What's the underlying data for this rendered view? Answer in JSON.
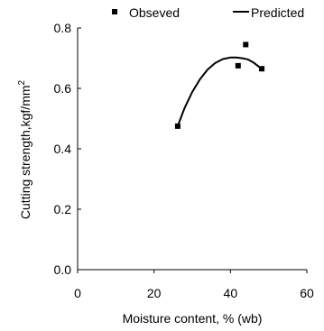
{
  "chart_data": {
    "type": "scatter",
    "title": "",
    "xlabel": "Moisture content, % (wb)",
    "ylabel": "Cutting strength,kgf/mm",
    "ylabel_superscript": "2",
    "xlim": [
      0,
      60
    ],
    "ylim": [
      0,
      0.8
    ],
    "xticks": [
      0,
      20,
      40,
      60
    ],
    "yticks": [
      0.0,
      0.2,
      0.4,
      0.6,
      0.8
    ],
    "xtick_labels": [
      "0",
      "20",
      "40",
      "60"
    ],
    "ytick_labels": [
      "0.0",
      "0.2",
      "0.4",
      "0.6",
      "0.8"
    ],
    "grid": false,
    "legend_position": "top",
    "series": [
      {
        "name": "Obseved",
        "kind": "scatter",
        "marker": "square",
        "x": [
          26.2,
          42.0,
          44.0,
          48.2
        ],
        "y": [
          0.475,
          0.675,
          0.745,
          0.665
        ]
      },
      {
        "name": "Predicted",
        "kind": "line",
        "x": [
          26.2,
          28,
          30,
          32,
          34,
          36,
          38,
          40,
          41.5,
          43,
          44.5,
          46,
          47.5,
          48.2
        ],
        "y": [
          0.475,
          0.535,
          0.588,
          0.63,
          0.662,
          0.684,
          0.697,
          0.702,
          0.702,
          0.7,
          0.696,
          0.686,
          0.671,
          0.663
        ]
      }
    ]
  }
}
